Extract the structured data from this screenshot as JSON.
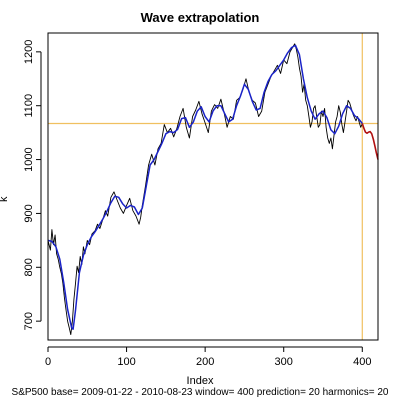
{
  "chart_data": {
    "type": "line",
    "title": "Wave extrapolation",
    "xlabel": "Index",
    "ylabel": "k",
    "subtitle": "S&P500  base= 2009-01-22 - 2010-08-23  window= 400  prediction= 20  harmonics= 20",
    "xlim": [
      0,
      420
    ],
    "ylim": [
      665,
      1235
    ],
    "x_ticks": [
      0,
      100,
      200,
      300,
      400
    ],
    "y_ticks": [
      700,
      800,
      900,
      1000,
      1100,
      1200
    ],
    "grid": false,
    "legend": "none",
    "reference_lines": {
      "vertical_x": 400,
      "horizontal_y": 1067,
      "color": "#f0c060"
    },
    "series": [
      {
        "color": "#000000",
        "x": [
          0,
          3,
          5,
          7,
          9,
          11,
          13,
          15,
          17,
          19,
          21,
          23,
          25,
          27,
          29,
          31,
          33,
          35,
          37,
          39,
          41,
          43,
          45,
          47,
          50,
          53,
          56,
          60,
          63,
          66,
          70,
          73,
          76,
          80,
          84,
          88,
          92,
          96,
          100,
          104,
          108,
          112,
          116,
          118,
          120,
          124,
          128,
          132,
          136,
          140,
          144,
          148,
          152,
          156,
          160,
          164,
          168,
          172,
          176,
          180,
          184,
          188,
          192,
          196,
          200,
          204,
          208,
          212,
          216,
          220,
          224,
          228,
          232,
          236,
          240,
          244,
          248,
          252,
          256,
          260,
          264,
          268,
          272,
          276,
          280,
          284,
          288,
          292,
          296,
          300,
          304,
          308,
          312,
          314,
          316,
          318,
          320,
          322,
          324,
          326,
          328,
          330,
          332,
          334,
          336,
          338,
          340,
          342,
          344,
          346,
          348,
          350,
          352,
          354,
          356,
          358,
          360,
          362,
          364,
          366,
          368,
          370,
          372,
          374,
          376,
          378,
          380,
          382,
          384,
          386,
          388,
          390,
          392,
          394,
          396,
          398,
          400
        ],
        "values": [
          850,
          832,
          870,
          842,
          860,
          825,
          815,
          800,
          788,
          770,
          742,
          720,
          700,
          688,
          675,
          700,
          740,
          770,
          802,
          790,
          820,
          805,
          838,
          825,
          850,
          842,
          862,
          868,
          880,
          872,
          890,
          905,
          895,
          930,
          940,
          925,
          910,
          900,
          915,
          928,
          905,
          895,
          880,
          893,
          915,
          950,
          990,
          1010,
          990,
          1020,
          1030,
          1065,
          1050,
          1058,
          1042,
          1058,
          1080,
          1095,
          1060,
          1040,
          1080,
          1092,
          1108,
          1085,
          1068,
          1050,
          1090,
          1102,
          1095,
          1112,
          1088,
          1060,
          1080,
          1075,
          1110,
          1115,
          1130,
          1150,
          1125,
          1110,
          1105,
          1080,
          1090,
          1125,
          1140,
          1155,
          1165,
          1175,
          1160,
          1185,
          1178,
          1200,
          1210,
          1215,
          1205,
          1190,
          1170,
          1155,
          1125,
          1140,
          1110,
          1100,
          1080,
          1060,
          1070,
          1095,
          1100,
          1080,
          1060,
          1065,
          1090,
          1080,
          1095,
          1060,
          1040,
          1030,
          1040,
          1020,
          1045,
          1070,
          1080,
          1100,
          1088,
          1065,
          1050,
          1070,
          1090,
          1110,
          1105,
          1095,
          1085,
          1078,
          1072,
          1080,
          1070,
          1060,
          1067
        ]
      },
      {
        "color": "#1a23c8",
        "x": [
          0,
          5,
          10,
          15,
          20,
          25,
          30,
          32,
          35,
          40,
          45,
          50,
          55,
          60,
          65,
          70,
          75,
          80,
          85,
          90,
          95,
          100,
          105,
          110,
          115,
          120,
          125,
          130,
          135,
          140,
          145,
          150,
          155,
          160,
          165,
          170,
          175,
          180,
          185,
          190,
          195,
          200,
          205,
          210,
          215,
          220,
          225,
          230,
          235,
          240,
          245,
          250,
          255,
          260,
          265,
          270,
          275,
          280,
          285,
          290,
          295,
          300,
          305,
          310,
          315,
          320,
          325,
          330,
          335,
          340,
          345,
          350,
          355,
          360,
          365,
          370,
          375,
          380,
          385,
          390,
          395,
          400
        ],
        "values": [
          850,
          848,
          838,
          815,
          772,
          722,
          688,
          685,
          720,
          790,
          822,
          842,
          856,
          866,
          878,
          890,
          904,
          920,
          932,
          930,
          918,
          910,
          915,
          912,
          898,
          910,
          950,
          990,
          1000,
          1015,
          1030,
          1048,
          1052,
          1050,
          1056,
          1076,
          1078,
          1060,
          1070,
          1090,
          1098,
          1080,
          1070,
          1090,
          1100,
          1100,
          1085,
          1070,
          1075,
          1100,
          1118,
          1140,
          1130,
          1108,
          1092,
          1095,
          1125,
          1145,
          1158,
          1165,
          1175,
          1185,
          1198,
          1208,
          1212,
          1195,
          1150,
          1115,
          1090,
          1075,
          1085,
          1090,
          1078,
          1055,
          1048,
          1062,
          1085,
          1100,
          1095,
          1082,
          1076,
          1067
        ]
      },
      {
        "color": "#b01010",
        "x": [
          400,
          402,
          404,
          406,
          408,
          410,
          412,
          414,
          416,
          418,
          420
        ],
        "values": [
          1067,
          1058,
          1051,
          1049,
          1051,
          1052,
          1048,
          1038,
          1025,
          1012,
          1000
        ]
      }
    ]
  }
}
